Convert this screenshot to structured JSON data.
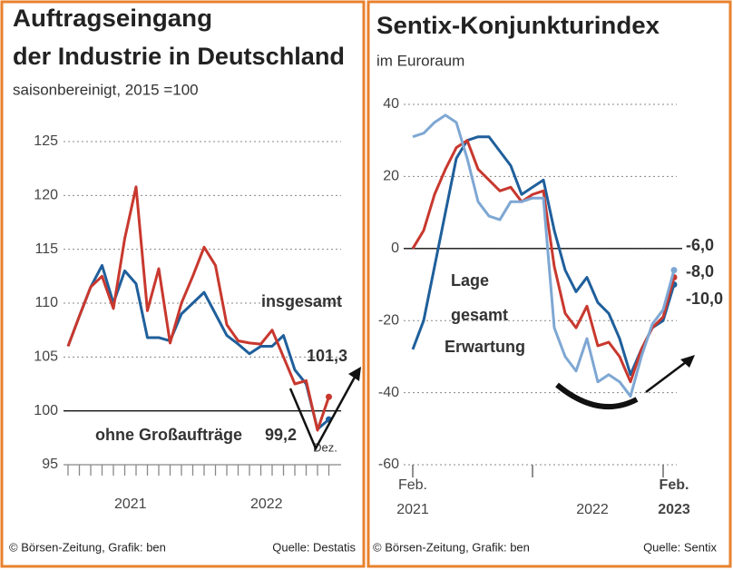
{
  "chart_data": [
    {
      "type": "line",
      "title": [
        "Auftragseingang",
        "der Industrie in Deutschland"
      ],
      "subtitle": "saisonbereinigt, 2015 =100",
      "categories": [
        null,
        null,
        null,
        null,
        null,
        null,
        null,
        null,
        null,
        null,
        null,
        null,
        null,
        null,
        null,
        null,
        null,
        null,
        null,
        null,
        null,
        null,
        null,
        null
      ],
      "year_labels": [
        "2021",
        "2022"
      ],
      "annotation": "Dez.",
      "series": [
        {
          "name": "ohne Großaufträge",
          "color": "#1f5f9b",
          "values": [
            106,
            108.8,
            111.5,
            113.5,
            110,
            113,
            111.8,
            106.8,
            106.8,
            106.5,
            109,
            110,
            111,
            109,
            107,
            106.2,
            105.3,
            106,
            106,
            107,
            103.8,
            102.5,
            98.3,
            99.2
          ],
          "value_labels": [
            null,
            null,
            null,
            null,
            null,
            null,
            null,
            null,
            null,
            null,
            null,
            null,
            null,
            null,
            null,
            null,
            null,
            null,
            null,
            null,
            null,
            null,
            null,
            "99,2"
          ]
        },
        {
          "name": "insgesamt",
          "color": "#c8382e",
          "values": [
            106,
            108.8,
            111.5,
            112.5,
            109.5,
            116,
            120.8,
            109.3,
            113.2,
            106.3,
            110,
            112.5,
            115.2,
            113.5,
            108,
            106.5,
            106.3,
            106.2,
            107.5,
            105,
            102.5,
            102.8,
            98.2,
            101.3
          ],
          "value_labels": [
            null,
            null,
            null,
            null,
            null,
            null,
            null,
            null,
            null,
            null,
            null,
            null,
            null,
            null,
            null,
            null,
            null,
            null,
            null,
            null,
            null,
            null,
            null,
            "101,3"
          ]
        }
      ],
      "ylim": [
        95,
        125
      ],
      "yticks": [
        95,
        100,
        105,
        110,
        115,
        120,
        125
      ],
      "grid": true,
      "reference_line": 100,
      "footer_left": "© Börsen-Zeitung, Grafik: ben",
      "footer_right": "Quelle: Destatis"
    },
    {
      "type": "line",
      "title": [
        "Sentix-Konjunkturindex"
      ],
      "subtitle": "im Euroraum",
      "categories": [
        "Feb.",
        null,
        null,
        null,
        null,
        null,
        null,
        null,
        null,
        null,
        null,
        null,
        null,
        null,
        null,
        null,
        null,
        null,
        null,
        null,
        null,
        null,
        null,
        null,
        "Feb."
      ],
      "year_labels": [
        "2021",
        "2022",
        "2023"
      ],
      "series": [
        {
          "name": "Lage",
          "color": "#1f5f9b",
          "values": [
            -28,
            -20,
            -5,
            10,
            25,
            30,
            31,
            31,
            27,
            23,
            15,
            17,
            19,
            5,
            -6,
            -12,
            -8,
            -15,
            -18,
            -25,
            -35,
            -28,
            -22,
            -20,
            -10
          ],
          "value_labels": [
            null,
            null,
            null,
            null,
            null,
            null,
            null,
            null,
            null,
            null,
            null,
            null,
            null,
            null,
            null,
            null,
            null,
            null,
            null,
            null,
            null,
            null,
            null,
            null,
            "-10,0"
          ]
        },
        {
          "name": "gesamt",
          "color": "#c8382e",
          "values": [
            0,
            5,
            15,
            22,
            28,
            30,
            22,
            19,
            16,
            17,
            13,
            15,
            16,
            -5,
            -18,
            -22,
            -16,
            -27,
            -26,
            -30,
            -37,
            -28,
            -22,
            -19,
            -8
          ],
          "value_labels": [
            null,
            null,
            null,
            null,
            null,
            null,
            null,
            null,
            null,
            null,
            null,
            null,
            null,
            null,
            null,
            null,
            null,
            null,
            null,
            null,
            null,
            null,
            null,
            null,
            "-8,0"
          ]
        },
        {
          "name": "Erwartung",
          "color": "#7ea7d3",
          "values": [
            31,
            32,
            35,
            37,
            35,
            25,
            13,
            9,
            8,
            13,
            13,
            14,
            14,
            -22,
            -30,
            -34,
            -25,
            -37,
            -35,
            -37,
            -41,
            -30,
            -21,
            -17,
            -6
          ],
          "value_labels": [
            null,
            null,
            null,
            null,
            null,
            null,
            null,
            null,
            null,
            null,
            null,
            null,
            null,
            null,
            null,
            null,
            null,
            null,
            null,
            null,
            null,
            null,
            null,
            null,
            "-6,0"
          ]
        }
      ],
      "ylim": [
        -60,
        40
      ],
      "yticks": [
        -60,
        -40,
        -20,
        0,
        20,
        40
      ],
      "grid": true,
      "reference_line": 0,
      "footer_left": "© Börsen-Zeitung, Grafik: ben",
      "footer_right": "Quelle: Sentix"
    }
  ]
}
